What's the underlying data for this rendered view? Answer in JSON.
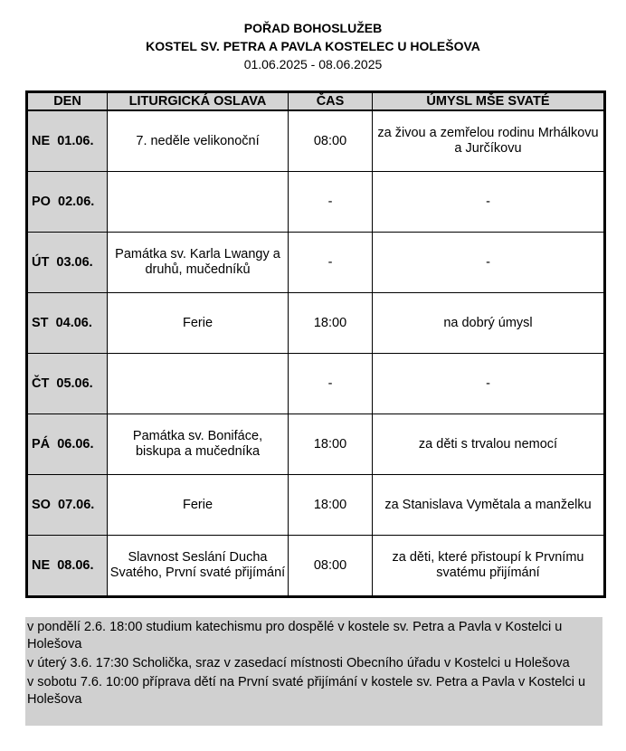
{
  "header": {
    "title": "POŘAD BOHOSLUŽEB",
    "subtitle": "KOSTEL SV. PETRA A PAVLA KOSTELEC U HOLEŠOVA",
    "date_range": "01.06.2025 - 08.06.2025"
  },
  "table": {
    "columns": [
      "DEN",
      "LITURGICKÁ OSLAVA",
      "ČAS",
      "ÚMYSL MŠE SVATÉ"
    ],
    "rows": [
      {
        "day": "NE  01.06.",
        "celebration": "7. neděle velikonoční",
        "time": "08:00",
        "intention": "za živou a zemřelou rodinu Mrhálkovu a Jurčíkovu"
      },
      {
        "day": "PO  02.06.",
        "celebration": "",
        "time": "-",
        "intention": "-"
      },
      {
        "day": "ÚT  03.06.",
        "celebration": "Památka sv. Karla Lwangy a druhů, mučedníků",
        "time": "-",
        "intention": "-"
      },
      {
        "day": "ST  04.06.",
        "celebration": "Ferie",
        "time": "18:00",
        "intention": "na dobrý úmysl"
      },
      {
        "day": "ČT  05.06.",
        "celebration": "",
        "time": "-",
        "intention": "-"
      },
      {
        "day": "PÁ  06.06.",
        "celebration": "Památka sv. Bonifáce, biskupa a mučedníka",
        "time": "18:00",
        "intention": "za děti s trvalou nemocí"
      },
      {
        "day": "SO  07.06.",
        "celebration": "Ferie",
        "time": "18:00",
        "intention": "za Stanislava Vymětala a manželku"
      },
      {
        "day": "NE  08.06.",
        "celebration": "Slavnost Seslání Ducha Svatého, První svaté přijímání",
        "time": "08:00",
        "intention": "za děti, které přistoupí k Prvnímu svatému přijímání"
      }
    ]
  },
  "notes": [
    "v pondělí 2.6. 18:00 studium katechismu pro dospělé v kostele sv. Petra a Pavla v Kostelci u Holešova",
    "v úterý 3.6. 17:30 Scholička, sraz v zasedací místnosti Obecního úřadu v Kostelci u Holešova",
    "v sobotu 7.6. 10:00 příprava dětí na První svaté přijímání v kostele sv. Petra a Pavla v Kostelci u Holešova"
  ]
}
